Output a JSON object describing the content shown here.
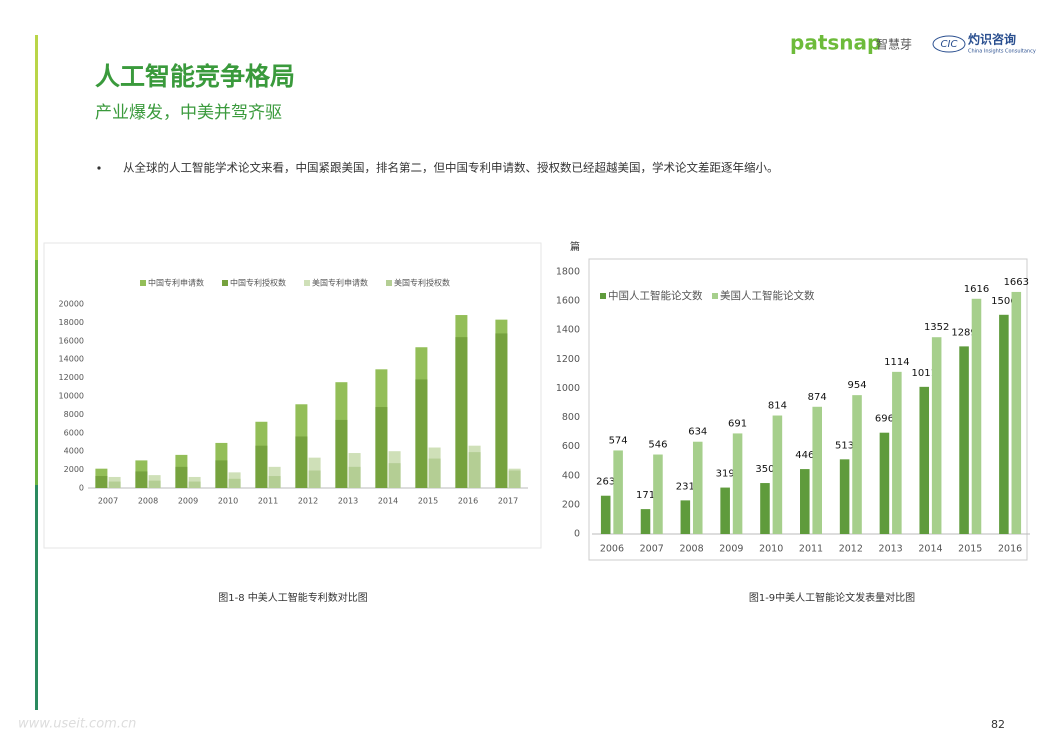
{
  "header": {
    "title": "人工智能竞争格局",
    "subtitle": "产业爆发，中美并驾齐驱",
    "brand1": "patsnap",
    "brand1_cn": "智慧芽",
    "brand2": "CIC",
    "brand2_cn": "灼识咨询",
    "brand2_en": "China Insights Consultancy"
  },
  "bullet": "从全球的人工智能学术论文来看，中国紧跟美国，排名第二，但中国专利申请数、授权数已经超越美国，学术论文差距逐年缩小。",
  "chart_data": [
    {
      "type": "bar",
      "overlap": true,
      "caption": "图1-8 中美人工智能专利数对比图",
      "categories": [
        "2007",
        "2008",
        "2009",
        "2010",
        "2011",
        "2012",
        "2013",
        "2014",
        "2015",
        "2016",
        "2017"
      ],
      "series": [
        {
          "name": "中国专利申请数",
          "color": "#93be58",
          "values": [
            2100,
            3000,
            3600,
            4900,
            7200,
            9100,
            11500,
            12900,
            15300,
            18800,
            18300
          ]
        },
        {
          "name": "中国专利授权数",
          "color": "#76a23e",
          "values": [
            1300,
            1800,
            2300,
            3000,
            4600,
            5600,
            7400,
            8800,
            11800,
            16400,
            16800
          ]
        },
        {
          "name": "美国专利申请数",
          "color": "#cfe0b8",
          "values": [
            1200,
            1400,
            1200,
            1700,
            2300,
            3300,
            3800,
            4000,
            4400,
            4600,
            2100
          ]
        },
        {
          "name": "美国专利授权数",
          "color": "#b4ce94",
          "values": [
            700,
            800,
            700,
            1000,
            1300,
            1900,
            2300,
            2700,
            3200,
            3900,
            1900
          ]
        }
      ],
      "ylim": [
        0,
        20000
      ],
      "yticks": [
        0,
        2000,
        4000,
        6000,
        8000,
        10000,
        12000,
        14000,
        16000,
        18000,
        20000
      ]
    },
    {
      "type": "bar",
      "caption": "图1-9中美人工智能论文发表量对比图",
      "ylabel": "篇",
      "data_labels": true,
      "categories": [
        "2006",
        "2007",
        "2008",
        "2009",
        "2010",
        "2011",
        "2012",
        "2013",
        "2014",
        "2015",
        "2016"
      ],
      "series": [
        {
          "name": "中国人工智能论文数",
          "color": "#5f9b3c",
          "values": [
            263,
            171,
            231,
            319,
            350,
            446,
            513,
            696,
            1011,
            1289,
            1506
          ]
        },
        {
          "name": "美国人工智能论文数",
          "color": "#a6cf8c",
          "values": [
            574,
            546,
            634,
            691,
            814,
            874,
            954,
            1114,
            1352,
            1616,
            1663
          ]
        }
      ],
      "ylim": [
        0,
        1800
      ],
      "yticks": [
        0,
        200,
        400,
        600,
        800,
        1000,
        1200,
        1400,
        1600,
        1800
      ]
    }
  ],
  "page_number": "82",
  "watermark": "www.useit.com.cn"
}
